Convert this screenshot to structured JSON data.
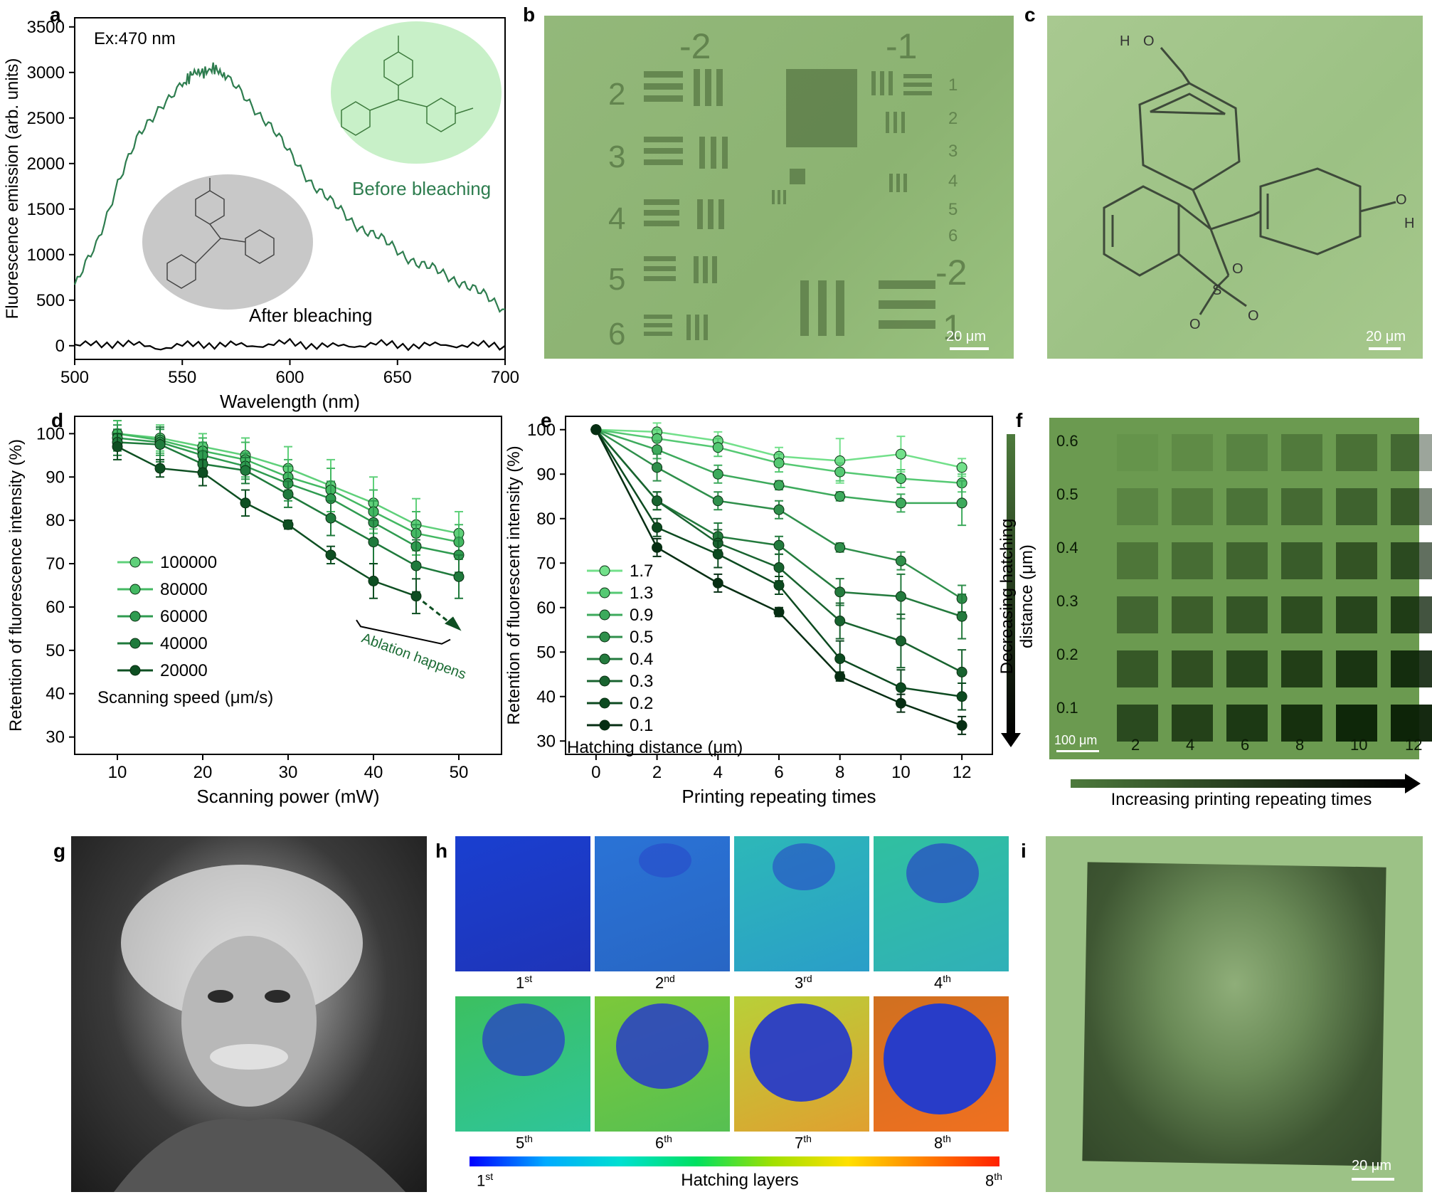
{
  "panels": {
    "a": "a",
    "b": "b",
    "c": "c",
    "d": "d",
    "e": "e",
    "f": "f",
    "g": "g",
    "h": "h",
    "i": "i"
  },
  "chart_data": [
    {
      "id": "a",
      "type": "line",
      "annotation": "Ex:470 nm",
      "xlabel": "Wavelength (nm)",
      "ylabel": "Fluorescence emission (arb. units)",
      "xlim": [
        500,
        700
      ],
      "ylim": [
        -150,
        3600
      ],
      "xticks": [
        "500",
        "550",
        "600",
        "650",
        "700"
      ],
      "yticks": [
        "0",
        "500",
        "1000",
        "1500",
        "2000",
        "2500",
        "3000",
        "3500"
      ],
      "series": [
        {
          "name": "Before bleaching",
          "color": "#2e7d4f",
          "x": [
            500,
            510,
            520,
            530,
            540,
            550,
            555,
            560,
            565,
            570,
            580,
            590,
            600,
            610,
            620,
            630,
            640,
            650,
            660,
            670,
            680,
            690,
            700
          ],
          "y": [
            650,
            1100,
            1800,
            2300,
            2650,
            2850,
            3000,
            3000,
            3050,
            2950,
            2700,
            2450,
            2100,
            1800,
            1550,
            1350,
            1200,
            1050,
            900,
            800,
            700,
            550,
            400
          ]
        },
        {
          "name": "After bleaching",
          "color": "#000000",
          "x": [
            500,
            520,
            540,
            560,
            580,
            600,
            620,
            640,
            660,
            680,
            700
          ],
          "y": [
            0,
            30,
            -20,
            20,
            0,
            30,
            -10,
            20,
            0,
            10,
            0
          ]
        }
      ]
    },
    {
      "id": "d",
      "type": "line",
      "xlabel": "Scanning power (mW)",
      "ylabel": "Retention of fluorescence intensity (%)",
      "xlim": [
        5,
        55
      ],
      "ylim": [
        26,
        104
      ],
      "xticks": [
        "10",
        "20",
        "30",
        "40",
        "50"
      ],
      "yticks": [
        "30",
        "40",
        "50",
        "60",
        "70",
        "80",
        "90",
        "100"
      ],
      "legend_title": "Scanning speed (μm/s)",
      "annotation": "Ablation happens",
      "x": [
        10,
        15,
        20,
        25,
        30,
        35,
        40,
        45,
        50
      ],
      "series": [
        {
          "name": "100000",
          "color": "#5fd07a",
          "y": [
            100,
            99,
            97,
            95,
            92,
            88,
            84,
            79,
            77
          ],
          "err": [
            3,
            3,
            3,
            4,
            5,
            6,
            6,
            6,
            5
          ]
        },
        {
          "name": "80000",
          "color": "#43b862",
          "y": [
            100,
            98.5,
            96,
            94,
            90,
            87,
            82,
            77,
            75
          ],
          "err": [
            3,
            3,
            3,
            4,
            4,
            5,
            5,
            5,
            4
          ]
        },
        {
          "name": "60000",
          "color": "#2f9b50",
          "y": [
            99,
            98,
            95,
            92.5,
            88.5,
            85,
            79.5,
            74,
            72
          ],
          "err": [
            3,
            3,
            3,
            3,
            4,
            4,
            5,
            5,
            4
          ]
        },
        {
          "name": "40000",
          "color": "#1f7a3c",
          "y": [
            98,
            97.5,
            93,
            91.5,
            86,
            80.5,
            75,
            69.5,
            67
          ],
          "err": [
            3,
            4,
            3,
            3,
            3,
            4,
            5,
            6,
            5
          ]
        },
        {
          "name": "20000",
          "color": "#0e4f22",
          "y": [
            97,
            92,
            91,
            84,
            79,
            72,
            66,
            62.5,
            null
          ],
          "err": [
            3,
            2,
            3,
            3,
            1,
            2,
            4,
            4,
            0
          ]
        }
      ]
    },
    {
      "id": "e",
      "type": "line",
      "xlabel": "Printing repeating times",
      "ylabel": "Retention of fluorescent intensity (%)",
      "xlim": [
        -1,
        13
      ],
      "ylim": [
        27,
        103
      ],
      "xticks": [
        "0",
        "2",
        "4",
        "6",
        "8",
        "10",
        "12"
      ],
      "yticks": [
        "30",
        "40",
        "50",
        "60",
        "70",
        "80",
        "90",
        "100"
      ],
      "legend_title": "Hatching distance (μm)",
      "x": [
        0,
        2,
        4,
        6,
        8,
        10,
        12
      ],
      "series": [
        {
          "name": "1.7",
          "color": "#72e08a",
          "y": [
            100,
            99.5,
            97.5,
            94,
            93,
            94.5,
            91.5
          ],
          "err": [
            0,
            2,
            2,
            2,
            5,
            4,
            2
          ]
        },
        {
          "name": "1.3",
          "color": "#55c973",
          "y": [
            100,
            98,
            96,
            92.5,
            90.5,
            89,
            88
          ],
          "err": [
            0,
            2,
            2,
            2,
            2,
            2,
            2
          ]
        },
        {
          "name": "0.9",
          "color": "#3daa5c",
          "y": [
            100,
            95.5,
            90,
            87.5,
            85,
            83.5,
            83.5
          ],
          "err": [
            0,
            2,
            2,
            1,
            1,
            2,
            5
          ]
        },
        {
          "name": "0.5",
          "color": "#2f8f4b",
          "y": [
            100,
            91.5,
            84,
            82,
            73.5,
            70.5,
            62
          ],
          "err": [
            0,
            3,
            2,
            2,
            1,
            2,
            3
          ]
        },
        {
          "name": "0.4",
          "color": "#237a3d",
          "y": [
            100,
            84,
            76,
            74,
            63.5,
            62.5,
            58
          ],
          "err": [
            0,
            2,
            3,
            2,
            3,
            5,
            5
          ]
        },
        {
          "name": "0.3",
          "color": "#18632f",
          "y": [
            100,
            84,
            74.5,
            69,
            57,
            52.5,
            45.5
          ],
          "err": [
            0,
            2,
            3,
            3,
            4,
            6,
            5
          ]
        },
        {
          "name": "0.2",
          "color": "#0c4a20",
          "y": [
            100,
            78,
            72,
            65,
            48.5,
            42,
            40
          ],
          "err": [
            0,
            2,
            3,
            2,
            4,
            4,
            3
          ]
        },
        {
          "name": "0.1",
          "color": "#062e13",
          "y": [
            100,
            73.5,
            65.5,
            59,
            44.5,
            38.5,
            33.5
          ],
          "err": [
            0,
            2,
            2,
            1,
            1,
            2,
            2
          ]
        }
      ]
    }
  ],
  "panel_b": {
    "labels_top": [
      "-2",
      "-1"
    ],
    "labels_left": [
      "2",
      "3",
      "4",
      "5",
      "6"
    ],
    "labels_right": [
      "1",
      "2",
      "3",
      "4",
      "5",
      "6"
    ],
    "label_right_mid": "-2",
    "label_right_bottom": "1",
    "scale": "20 μm"
  },
  "panel_c": {
    "scale": "20 μm",
    "atom_h1": "H",
    "atom_o1": "O",
    "atom_o2": "O",
    "atom_h2": "H",
    "atom_o_ring": "O",
    "atom_s": "S",
    "atom_o3": "O",
    "atom_o4": "O"
  },
  "panel_a_labels": {
    "before": "Before bleaching",
    "after": "After bleaching"
  },
  "panel_f": {
    "yticks": [
      "0.6",
      "0.5",
      "0.4",
      "0.3",
      "0.2",
      "0.1"
    ],
    "xticks": [
      "2",
      "4",
      "6",
      "8",
      "10",
      "12"
    ],
    "scale": "100 μm",
    "ylabel": "Decreasing hatching distance (μm)",
    "xlabel": "Increasing printing repeating times"
  },
  "panel_h": {
    "layers": [
      {
        "n": "1",
        "sup": "st"
      },
      {
        "n": "2",
        "sup": "nd"
      },
      {
        "n": "3",
        "sup": "rd"
      },
      {
        "n": "4",
        "sup": "th"
      },
      {
        "n": "5",
        "sup": "th"
      },
      {
        "n": "6",
        "sup": "th"
      },
      {
        "n": "7",
        "sup": "th"
      },
      {
        "n": "8",
        "sup": "th"
      }
    ],
    "colorbar_label": "Hatching layers",
    "colorbar_min": {
      "n": "1",
      "sup": "st"
    },
    "colorbar_max": {
      "n": "8",
      "sup": "th"
    }
  },
  "panel_i": {
    "scale": "20 μm"
  }
}
